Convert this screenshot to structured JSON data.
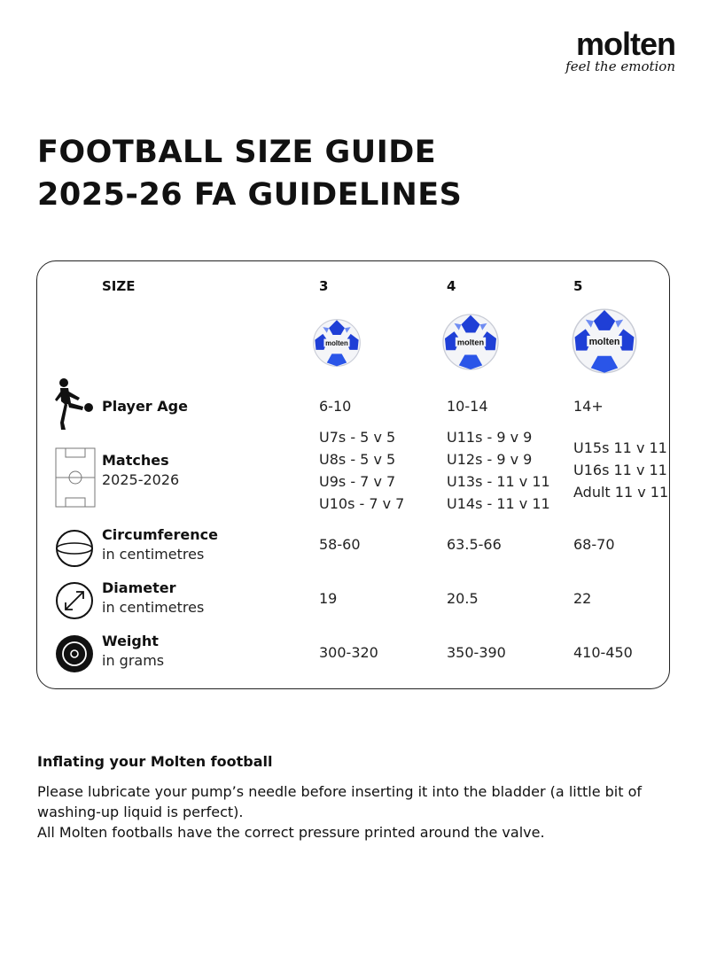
{
  "brand": {
    "name": "molten",
    "tagline": "feel the emotion"
  },
  "title": {
    "line1": "FOOTBALL SIZE GUIDE",
    "line2": "2025-26 FA GUIDELINES"
  },
  "table": {
    "size_header": "SIZE",
    "sizes": [
      "3",
      "4",
      "5"
    ],
    "ball_logo_text": "molten",
    "colors": {
      "ball_blue": "#1f3fd6",
      "ball_white": "#f4f5f8"
    },
    "icons": {
      "player_age": "footballer-kick-icon",
      "matches": "football-pitch-icon",
      "circumference": "ball-circumference-icon",
      "diameter": "diameter-arrow-icon",
      "weight": "weight-disc-icon"
    },
    "rows": {
      "player_age": {
        "label": "Player Age",
        "values": [
          "6-10",
          "10-14",
          "14+"
        ]
      },
      "matches": {
        "label": "Matches",
        "sub": "2025-2026",
        "values": [
          [
            "U7s - 5 v 5",
            "U8s - 5 v 5",
            "U9s - 7 v 7",
            "U10s - 7 v 7"
          ],
          [
            "U11s - 9 v 9",
            "U12s - 9 v 9",
            "U13s - 11 v 11",
            "U14s - 11 v 11"
          ],
          [
            "U15s 11 v 11",
            "U16s 11 v 11",
            "Adult 11 v 11"
          ]
        ]
      },
      "circumference": {
        "label": "Circumference",
        "sub": "in centimetres",
        "values": [
          "58-60",
          "63.5-66",
          "68-70"
        ]
      },
      "diameter": {
        "label": "Diameter",
        "sub": "in centimetres",
        "values": [
          "19",
          "20.5",
          "22"
        ]
      },
      "weight": {
        "label": "Weight",
        "sub": "in grams",
        "values": [
          "300-320",
          "350-390",
          "410-450"
        ]
      }
    }
  },
  "inflating": {
    "title": "Inflating your Molten football",
    "line1": "Please lubricate your pump’s needle before inserting it into the bladder (a little bit of washing-up liquid is perfect).",
    "line2": "All Molten footballs have the correct pressure printed around the valve."
  }
}
